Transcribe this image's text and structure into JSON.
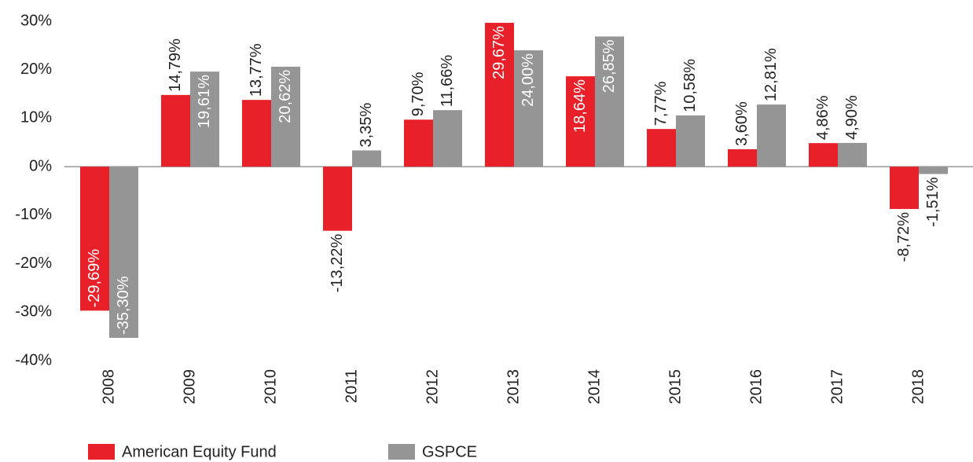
{
  "chart_data": {
    "type": "bar",
    "categories": [
      "2008",
      "2009",
      "2010",
      "2011",
      "2012",
      "2013",
      "2014",
      "2015",
      "2016",
      "2017",
      "2018"
    ],
    "series": [
      {
        "name": "American Equity Fund",
        "color": "#e8202a",
        "values": [
          -29.69,
          14.79,
          13.77,
          -13.22,
          9.7,
          29.67,
          18.64,
          7.77,
          3.6,
          4.86,
          -8.72
        ],
        "value_labels": [
          "-29,69%",
          "14,79%",
          "13,77%",
          "-13,22%",
          "9,70%",
          "29,67%",
          "18,64%",
          "7,77%",
          "3,60%",
          "4,86%",
          "-8,72%"
        ]
      },
      {
        "name": "GSPCE",
        "color": "#959595",
        "values": [
          -35.3,
          19.61,
          20.62,
          3.35,
          11.66,
          24.0,
          26.85,
          10.58,
          12.81,
          4.9,
          -1.51
        ],
        "value_labels": [
          "-35,30%",
          "19,61%",
          "20,62%",
          "3,35%",
          "11,66%",
          "24,00%",
          "26,85%",
          "10,58%",
          "12,81%",
          "4,90%",
          "-1,51%"
        ]
      }
    ],
    "ylim": [
      -40,
      30
    ],
    "yticks": [
      {
        "value": -40,
        "label": "-40%"
      },
      {
        "value": -30,
        "label": "-30%"
      },
      {
        "value": -20,
        "label": "-20%"
      },
      {
        "value": -10,
        "label": "-10%"
      },
      {
        "value": 0,
        "label": "0%"
      },
      {
        "value": 10,
        "label": "10%"
      },
      {
        "value": 20,
        "label": "20%"
      },
      {
        "value": 30,
        "label": "30%"
      }
    ],
    "grid": false,
    "legend": "bottom"
  }
}
